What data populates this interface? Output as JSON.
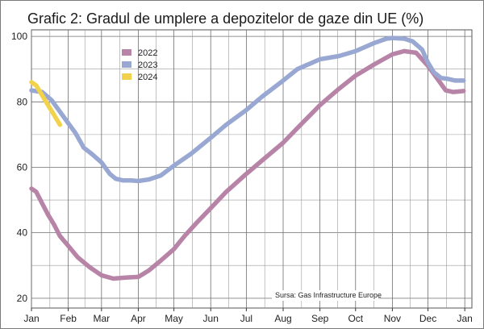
{
  "chart_data": {
    "type": "line",
    "title": "Grafic 2: Gradul de umplere a depozitelor de gaze din UE (%)",
    "source": "Sursa: Gas Infrastructure Europe",
    "xlabel": "",
    "ylabel": "",
    "x_unit": "day of year",
    "xlim": [
      1,
      372
    ],
    "ylim": [
      17,
      102
    ],
    "grid": true,
    "legend_position": "top-left",
    "x_ticks": [
      {
        "label": "Jan",
        "day": 1
      },
      {
        "label": "Feb",
        "day": 32
      },
      {
        "label": "Mar",
        "day": 60
      },
      {
        "label": "Apr",
        "day": 91
      },
      {
        "label": "May",
        "day": 121
      },
      {
        "label": "Jun",
        "day": 152
      },
      {
        "label": "Jul",
        "day": 182
      },
      {
        "label": "Aug",
        "day": 213
      },
      {
        "label": "Sep",
        "day": 244
      },
      {
        "label": "Oct",
        "day": 274
      },
      {
        "label": "Nov",
        "day": 305
      },
      {
        "label": "Dec",
        "day": 335
      },
      {
        "label": "Jan",
        "day": 366
      }
    ],
    "y_ticks": [
      20,
      40,
      60,
      80,
      100
    ],
    "series": [
      {
        "name": "2022",
        "color": "#b784a7",
        "points": [
          [
            1,
            53.5
          ],
          [
            5,
            52.5
          ],
          [
            10,
            49
          ],
          [
            15,
            45.5
          ],
          [
            20,
            42.5
          ],
          [
            25,
            39
          ],
          [
            32,
            36
          ],
          [
            40,
            32.5
          ],
          [
            50,
            29.5
          ],
          [
            60,
            27
          ],
          [
            70,
            26
          ],
          [
            80,
            26.3
          ],
          [
            91,
            26.5
          ],
          [
            100,
            28.5
          ],
          [
            110,
            31.5
          ],
          [
            121,
            35
          ],
          [
            130,
            39
          ],
          [
            140,
            43
          ],
          [
            152,
            47.5
          ],
          [
            165,
            52.5
          ],
          [
            182,
            58
          ],
          [
            195,
            62
          ],
          [
            213,
            67.5
          ],
          [
            225,
            72
          ],
          [
            244,
            79
          ],
          [
            260,
            84
          ],
          [
            274,
            88
          ],
          [
            290,
            91.5
          ],
          [
            305,
            94.5
          ],
          [
            315,
            95.5
          ],
          [
            325,
            95
          ],
          [
            335,
            91
          ],
          [
            343,
            87
          ],
          [
            350,
            83.5
          ],
          [
            356,
            83
          ],
          [
            365,
            83.3
          ]
        ]
      },
      {
        "name": "2023",
        "color": "#98a8d2",
        "points": [
          [
            1,
            83.5
          ],
          [
            10,
            83
          ],
          [
            18,
            80.5
          ],
          [
            25,
            77
          ],
          [
            32,
            73.5
          ],
          [
            38,
            70.5
          ],
          [
            45,
            66
          ],
          [
            52,
            64
          ],
          [
            60,
            61.5
          ],
          [
            67,
            58
          ],
          [
            72,
            56.5
          ],
          [
            78,
            56
          ],
          [
            85,
            56
          ],
          [
            91,
            55.8
          ],
          [
            100,
            56.3
          ],
          [
            110,
            57.5
          ],
          [
            121,
            60.5
          ],
          [
            135,
            64
          ],
          [
            152,
            69
          ],
          [
            165,
            73
          ],
          [
            182,
            77.5
          ],
          [
            195,
            81.5
          ],
          [
            213,
            86.5
          ],
          [
            225,
            90
          ],
          [
            244,
            93
          ],
          [
            260,
            94
          ],
          [
            274,
            95.5
          ],
          [
            290,
            98
          ],
          [
            300,
            99.3
          ],
          [
            305,
            99.5
          ],
          [
            315,
            99.3
          ],
          [
            322,
            98.5
          ],
          [
            330,
            96
          ],
          [
            335,
            92
          ],
          [
            340,
            89
          ],
          [
            346,
            87.3
          ],
          [
            352,
            87
          ],
          [
            358,
            86.5
          ],
          [
            365,
            86.5
          ]
        ]
      },
      {
        "name": "2024",
        "color": "#f2d24a",
        "points": [
          [
            1,
            86
          ],
          [
            5,
            85
          ],
          [
            10,
            82
          ],
          [
            15,
            79
          ],
          [
            20,
            76
          ],
          [
            25,
            73
          ]
        ]
      }
    ]
  }
}
